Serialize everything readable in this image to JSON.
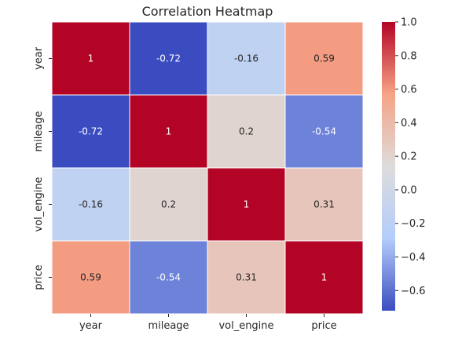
{
  "chart_data": {
    "type": "heatmap",
    "title": "Correlation Heatmap",
    "x_labels": [
      "year",
      "mileage",
      "vol_engine",
      "price"
    ],
    "y_labels": [
      "year",
      "mileage",
      "vol_engine",
      "price"
    ],
    "values": [
      [
        1,
        -0.72,
        -0.16,
        0.59
      ],
      [
        -0.72,
        1,
        0.2,
        -0.54
      ],
      [
        -0.16,
        0.2,
        1,
        0.31
      ],
      [
        0.59,
        -0.54,
        0.31,
        1
      ]
    ],
    "cell_labels": [
      [
        "1",
        "-0.72",
        "-0.16",
        "0.59"
      ],
      [
        "-0.72",
        "1",
        "0.2",
        "-0.54"
      ],
      [
        "-0.16",
        "0.2",
        "1",
        "0.31"
      ],
      [
        "0.59",
        "-0.54",
        "0.31",
        "1"
      ]
    ],
    "colormap": "coolwarm",
    "color_stops": [
      "#3b4cc0",
      "#b3cdfb",
      "#dddcdc",
      "#f6a385",
      "#b40426"
    ],
    "vmin": -0.72,
    "vmax": 1.0,
    "colorbar_ticks": [
      -0.6,
      -0.4,
      -0.2,
      0.0,
      0.2,
      0.4,
      0.6,
      0.8,
      1.0
    ],
    "colorbar_tick_labels": [
      "−0.6",
      "−0.4",
      "−0.2",
      "0.0",
      "0.2",
      "0.4",
      "0.6",
      "0.8",
      "1.0"
    ],
    "annotation_colors": {
      "light_text": "#ffffff",
      "dark_text": "#262626"
    },
    "grid_line_color": "#ffffff"
  }
}
